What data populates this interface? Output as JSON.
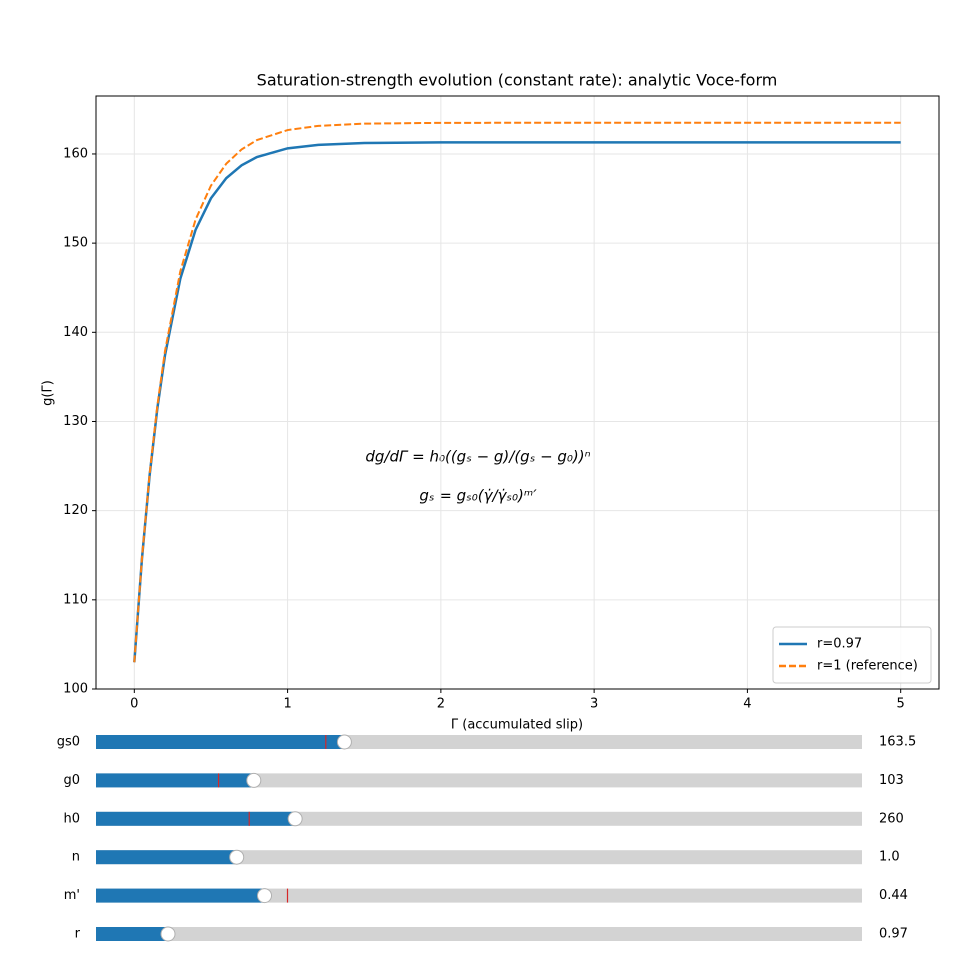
{
  "chart_data": {
    "type": "line",
    "title": "Saturation-strength evolution (constant rate): analytic Voce-form",
    "xlabel": "Γ (accumulated slip)",
    "ylabel": "g(Γ)",
    "x": [
      0,
      0.05,
      0.1,
      0.15,
      0.2,
      0.3,
      0.4,
      0.5,
      0.6,
      0.7,
      0.8,
      1.0,
      1.2,
      1.5,
      2,
      3,
      4,
      5
    ],
    "series": [
      {
        "name": "r=0.97",
        "color": "#1f77b4",
        "dash": "solid",
        "values": [
          103,
          114.65,
          123.98,
          131.44,
          137.41,
          146.0,
          151.51,
          155.03,
          157.29,
          158.73,
          159.66,
          160.63,
          161.02,
          161.23,
          161.3,
          161.3,
          161.3,
          161.3
        ]
      },
      {
        "name": "r=1 (reference)",
        "color": "#ff7f0e",
        "dash": "dashed",
        "values": [
          103,
          114.7,
          124.13,
          131.74,
          137.88,
          146.83,
          152.66,
          156.45,
          158.91,
          160.51,
          161.56,
          162.68,
          163.15,
          163.4,
          163.49,
          163.5,
          163.5,
          163.5
        ]
      }
    ],
    "xlim": [
      -0.25,
      5.25
    ],
    "xticks": [
      0,
      1,
      2,
      3,
      4,
      5
    ],
    "ylim": [
      100,
      166.5
    ],
    "yticks": [
      100,
      110,
      120,
      130,
      140,
      150,
      160
    ],
    "grid": true,
    "legend": "lower right",
    "annotations": [
      "dg/dΓ = h₀((gₛ − g)/(gₛ − g₀))ⁿ",
      "gₛ = gₛ₀(γ̇/γ̇ₛ₀)ᵐ′"
    ]
  },
  "sliders": [
    {
      "label": "gs0",
      "value": 163.5,
      "min": 50,
      "max": 400,
      "init": 155
    },
    {
      "label": "g0",
      "value": 103,
      "min": 0,
      "max": 500,
      "init": 80
    },
    {
      "label": "h0",
      "value": 260,
      "min": 0,
      "max": 1000,
      "init": 200
    },
    {
      "label": "n",
      "value": 1,
      "value_label": "1.0",
      "min": 0.1,
      "max": 5,
      "init": 1
    },
    {
      "label": "m'",
      "value": 0.44,
      "min": 0,
      "max": 2,
      "init": 0.5
    },
    {
      "label": "r",
      "value": 0.97,
      "min": 0.5,
      "max": 5.5,
      "init": 0.97
    }
  ]
}
